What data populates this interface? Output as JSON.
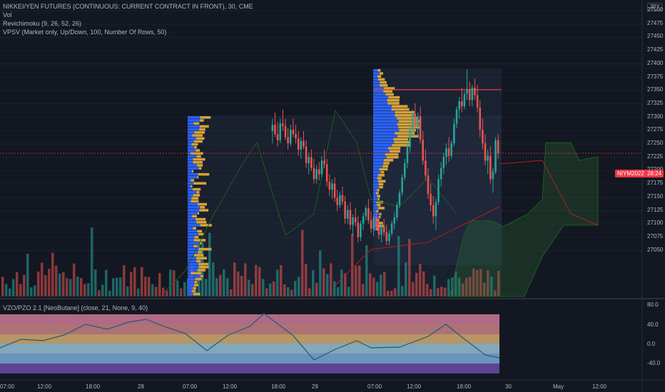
{
  "legend": {
    "symbol": "NIKKEI/YEN FUTURES (CONTINUOUS: CURRENT CONTRACT IN FRONT), 30, CME",
    "vol": "Vol",
    "ichimoku": "Revichimoku (9, 26, 52, 26)",
    "vpsv": "VPSV (Market only, Up/Down, 100, Number Of Rows, 50)",
    "vzo": "VZO/PZO 2.1 [NeoButane] (close, 21, None, 9, 40)"
  },
  "currency": "JPY",
  "price_axis": [
    "27500",
    "27475",
    "27450",
    "27425",
    "27400",
    "27375",
    "27350",
    "27325",
    "27300",
    "27275",
    "27250",
    "27225",
    "27200",
    "27175",
    "27150",
    "27125",
    "27100",
    "27075",
    "27050"
  ],
  "osc_axis": [
    "80.0",
    "40.0",
    "0.0",
    "-40.0"
  ],
  "time_axis": [
    "07:00",
    "12:00",
    "18:00",
    "28",
    "07:00",
    "12:00",
    "18:00",
    "29",
    "07:00",
    "12:00",
    "18:00",
    "30",
    "May",
    "12:00"
  ],
  "tags": {
    "contract": "NIYM2022",
    "countdown": "28:24"
  },
  "colors": {
    "up": "#26a69a",
    "down": "#ef5350",
    "vp_up": "#2962ff",
    "vp_down": "#d4a33a",
    "bg": "#131722",
    "price_line": "#f23645"
  },
  "chart_data": {
    "type": "candlestick",
    "ylim": [
      27040,
      27510
    ],
    "current_price": 27274,
    "poc_price": 27377,
    "candles": [
      [
        27310,
        27330,
        27290,
        27320
      ],
      [
        27320,
        27340,
        27300,
        27305
      ],
      [
        27305,
        27325,
        27285,
        27295
      ],
      [
        27295,
        27330,
        27290,
        27322
      ],
      [
        27322,
        27345,
        27310,
        27318
      ],
      [
        27318,
        27330,
        27295,
        27300
      ],
      [
        27300,
        27315,
        27280,
        27290
      ],
      [
        27290,
        27320,
        27285,
        27312
      ],
      [
        27312,
        27330,
        27300,
        27305
      ],
      [
        27305,
        27320,
        27290,
        27298
      ],
      [
        27298,
        27310,
        27270,
        27280
      ],
      [
        27280,
        27300,
        27265,
        27294
      ],
      [
        27294,
        27310,
        27280,
        27285
      ],
      [
        27285,
        27295,
        27250,
        27258
      ],
      [
        27258,
        27275,
        27240,
        27268
      ],
      [
        27268,
        27280,
        27245,
        27250
      ],
      [
        27250,
        27265,
        27225,
        27232
      ],
      [
        27232,
        27255,
        27225,
        27248
      ],
      [
        27248,
        27260,
        27230,
        27240
      ],
      [
        27240,
        27270,
        27235,
        27262
      ],
      [
        27262,
        27280,
        27250,
        27256
      ],
      [
        27256,
        27265,
        27220,
        27228
      ],
      [
        27228,
        27240,
        27205,
        27215
      ],
      [
        27215,
        27232,
        27200,
        27225
      ],
      [
        27225,
        27235,
        27195,
        27202
      ],
      [
        27202,
        27215,
        27180,
        27190
      ],
      [
        27190,
        27212,
        27185,
        27206
      ],
      [
        27206,
        27220,
        27190,
        27196
      ],
      [
        27196,
        27205,
        27160,
        27168
      ],
      [
        27168,
        27190,
        27160,
        27182
      ],
      [
        27182,
        27195,
        27150,
        27158
      ],
      [
        27158,
        27175,
        27140,
        27170
      ],
      [
        27170,
        27185,
        27155,
        27162
      ],
      [
        27162,
        27172,
        27130,
        27138
      ],
      [
        27138,
        27165,
        27132,
        27160
      ],
      [
        27160,
        27178,
        27150,
        27172
      ],
      [
        27172,
        27190,
        27165,
        27185
      ],
      [
        27185,
        27200,
        27160,
        27166
      ],
      [
        27166,
        27180,
        27145,
        27152
      ],
      [
        27152,
        27175,
        27140,
        27170
      ],
      [
        27170,
        27182,
        27150,
        27155
      ],
      [
        27155,
        27170,
        27135,
        27142
      ],
      [
        27142,
        27160,
        27130,
        27156
      ],
      [
        27156,
        27168,
        27140,
        27146
      ],
      [
        27146,
        27158,
        27125,
        27132
      ],
      [
        27132,
        27150,
        27125,
        27144
      ],
      [
        27144,
        27165,
        27140,
        27160
      ],
      [
        27160,
        27178,
        27150,
        27170
      ],
      [
        27170,
        27195,
        27165,
        27190
      ],
      [
        27190,
        27215,
        27185,
        27210
      ],
      [
        27210,
        27240,
        27205,
        27235
      ],
      [
        27235,
        27265,
        27230,
        27258
      ],
      [
        27258,
        27290,
        27250,
        27284
      ],
      [
        27284,
        27320,
        27275,
        27312
      ],
      [
        27312,
        27345,
        27300,
        27338
      ],
      [
        27338,
        27355,
        27310,
        27318
      ],
      [
        27318,
        27340,
        27300,
        27334
      ],
      [
        27334,
        27350,
        27290,
        27296
      ],
      [
        27296,
        27310,
        27255,
        27262
      ],
      [
        27262,
        27280,
        27230,
        27238
      ],
      [
        27238,
        27250,
        27200,
        27208
      ],
      [
        27208,
        27225,
        27180,
        27190
      ],
      [
        27190,
        27205,
        27160,
        27172
      ],
      [
        27172,
        27200,
        27150,
        27195
      ],
      [
        27195,
        27240,
        27190,
        27232
      ],
      [
        27232,
        27260,
        27220,
        27250
      ],
      [
        27250,
        27275,
        27240,
        27268
      ],
      [
        27268,
        27290,
        27255,
        27282
      ],
      [
        27282,
        27300,
        27260,
        27270
      ],
      [
        27270,
        27295,
        27265,
        27290
      ],
      [
        27290,
        27330,
        27285,
        27322
      ],
      [
        27322,
        27350,
        27315,
        27345
      ],
      [
        27345,
        27365,
        27330,
        27358
      ],
      [
        27358,
        27380,
        27340,
        27350
      ],
      [
        27350,
        27375,
        27345,
        27370
      ],
      [
        27370,
        27410,
        27360,
        27378
      ],
      [
        27378,
        27390,
        27350,
        27360
      ],
      [
        27360,
        27385,
        27350,
        27380
      ],
      [
        27380,
        27395,
        27360,
        27368
      ],
      [
        27368,
        27385,
        27340,
        27348
      ],
      [
        27348,
        27360,
        27300,
        27312
      ],
      [
        27312,
        27330,
        27280,
        27290
      ],
      [
        27290,
        27305,
        27255,
        27262
      ],
      [
        27262,
        27280,
        27240,
        27270
      ],
      [
        27270,
        27285,
        27225,
        27232
      ],
      [
        27232,
        27250,
        27210,
        27244
      ],
      [
        27244,
        27300,
        27240,
        27295
      ],
      [
        27295,
        27305,
        27265,
        27274
      ]
    ]
  }
}
